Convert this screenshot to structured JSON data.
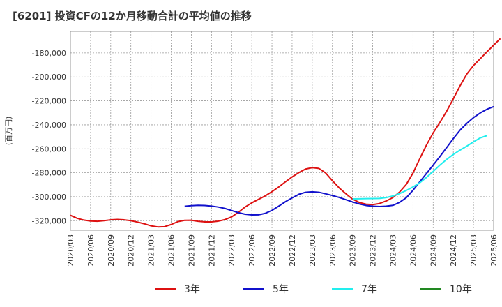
{
  "chart_data": {
    "type": "line",
    "title": "[6201]  投資CFの12か月移動合計の平均値の推移",
    "ylabel": "(百万円)",
    "xlabel": "",
    "x_ticks": [
      "2020/03",
      "2020/06",
      "2020/09",
      "2020/12",
      "2021/03",
      "2021/06",
      "2021/09",
      "2021/12",
      "2022/03",
      "2022/06",
      "2022/09",
      "2022/12",
      "2023/03",
      "2023/06",
      "2023/09",
      "2023/12",
      "2024/03",
      "2024/06",
      "2024/09",
      "2024/12",
      "2025/03",
      "2025/06"
    ],
    "y_ticks": [
      "-180,000",
      "-200,000",
      "-220,000",
      "-240,000",
      "-260,000",
      "-280,000",
      "-300,000",
      "-320,000"
    ],
    "y_tick_values": [
      -180000,
      -200000,
      -220000,
      -240000,
      -260000,
      -280000,
      -300000,
      -320000
    ],
    "ylim": [
      -328000,
      -162000
    ],
    "grid": true,
    "legend_position": "bottom",
    "series": [
      {
        "name": "3年",
        "color": "#dd1111",
        "start": "2020/03",
        "values": [
          -315500,
          -318000,
          -319500,
          -320300,
          -320500,
          -320000,
          -319300,
          -319000,
          -319300,
          -320000,
          -321200,
          -322600,
          -324300,
          -325200,
          -325000,
          -323200,
          -320800,
          -319700,
          -319600,
          -320500,
          -321000,
          -321000,
          -320400,
          -319100,
          -316800,
          -313000,
          -308600,
          -305100,
          -302200,
          -299300,
          -295800,
          -291900,
          -287600,
          -283500,
          -279900,
          -276900,
          -275700,
          -276400,
          -280200,
          -286600,
          -292600,
          -297500,
          -302000,
          -304800,
          -306200,
          -306600,
          -305700,
          -303600,
          -300700,
          -296100,
          -289700,
          -280200,
          -268300,
          -256900,
          -246700,
          -238000,
          -228700,
          -218300,
          -207400,
          -197700,
          -190500,
          -184800,
          -179100,
          -173500,
          -168000
        ]
      },
      {
        "name": "5年",
        "color": "#1111cc",
        "start": "2021/08",
        "values": [
          -308000,
          -307500,
          -307200,
          -307300,
          -307800,
          -308600,
          -309800,
          -311500,
          -313300,
          -314600,
          -315200,
          -315100,
          -313900,
          -311400,
          -307900,
          -304200,
          -301000,
          -298000,
          -296300,
          -295900,
          -296300,
          -297600,
          -299000,
          -300600,
          -302500,
          -304400,
          -306000,
          -307300,
          -307900,
          -308200,
          -307900,
          -307200,
          -304700,
          -300800,
          -294600,
          -287600,
          -280600,
          -273600,
          -266500,
          -259000,
          -251500,
          -244400,
          -238800,
          -234000,
          -230100,
          -227000,
          -224800
        ]
      },
      {
        "name": "7年",
        "color": "#22eeee",
        "start": "2023/09",
        "values": [
          -301800,
          -301700,
          -301600,
          -301500,
          -301400,
          -300700,
          -299400,
          -297400,
          -294800,
          -291800,
          -288400,
          -283900,
          -278900,
          -273600,
          -268900,
          -264700,
          -261100,
          -257800,
          -254200,
          -250900,
          -249000
        ]
      },
      {
        "name": "10年",
        "color": "#228822",
        "start": "2025/03",
        "values": []
      }
    ]
  }
}
